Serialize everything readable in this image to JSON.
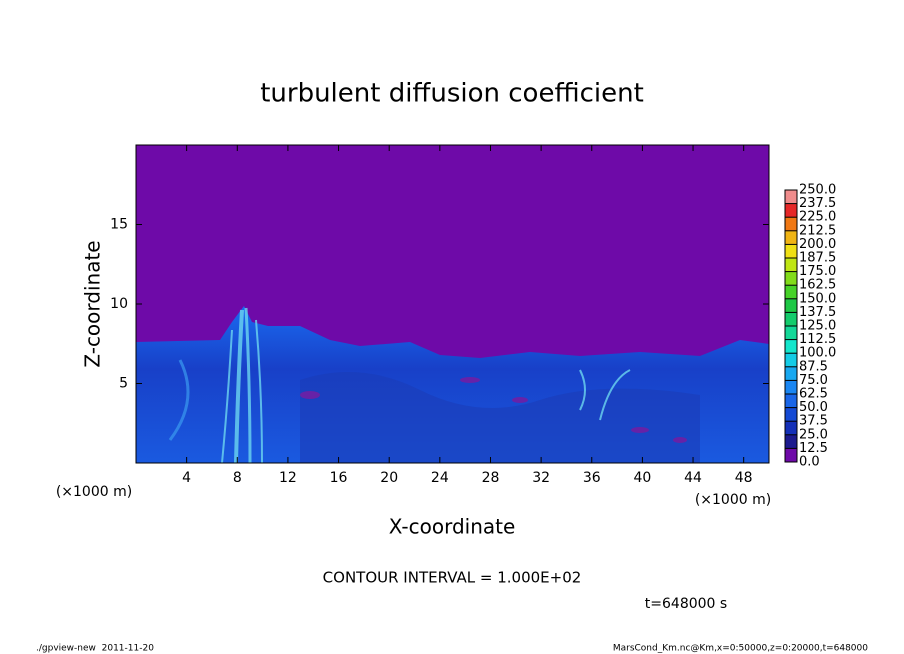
{
  "chart_data": {
    "type": "heatmap",
    "title": "turbulent diffusion coefficient",
    "x_label": "X-coordinate",
    "y_label": "Z-coordinate",
    "x_unit": "(×1000 m)",
    "x_unit_right": "(×1000 m)",
    "xlim": [
      0,
      50
    ],
    "ylim": [
      0,
      20
    ],
    "xticks": [
      4,
      8,
      12,
      16,
      20,
      24,
      28,
      32,
      36,
      40,
      44,
      48
    ],
    "yticks": [
      5,
      10,
      15
    ],
    "colorbar": {
      "ticks": [
        {
          "value": 0,
          "label": "0.0"
        },
        {
          "value": 12.5,
          "label": "12.5"
        },
        {
          "value": 25,
          "label": "25.0"
        },
        {
          "value": 37.5,
          "label": "37.5"
        },
        {
          "value": 50,
          "label": "50.0"
        },
        {
          "value": 62.5,
          "label": "62.5"
        },
        {
          "value": 75,
          "label": "75.0"
        },
        {
          "value": 87.5,
          "label": "87.5"
        },
        {
          "value": 100,
          "label": "100.0"
        },
        {
          "value": 112.5,
          "label": "112.5"
        },
        {
          "value": 125,
          "label": "125.0"
        },
        {
          "value": 137.5,
          "label": "137.5"
        },
        {
          "value": 150,
          "label": "150.0"
        },
        {
          "value": 162.5,
          "label": "162.5"
        },
        {
          "value": 175,
          "label": "175.0"
        },
        {
          "value": 187.5,
          "label": "187.5"
        },
        {
          "value": 200,
          "label": "200.0"
        },
        {
          "value": 212.5,
          "label": "212.5"
        },
        {
          "value": 225,
          "label": "225.0"
        },
        {
          "value": 237.5,
          "label": "237.5"
        },
        {
          "value": 250,
          "label": "250.0"
        }
      ],
      "colors": [
        "#6e0aa8",
        "#1c1a8e",
        "#1430b8",
        "#144ad4",
        "#1a66e8",
        "#1a86f2",
        "#18a8f0",
        "#14cce6",
        "#14e6cc",
        "#14d898",
        "#14cc6c",
        "#1ec846",
        "#46d228",
        "#82dc1a",
        "#c0e614",
        "#f0e014",
        "#f0b414",
        "#f07814",
        "#e62828",
        "#f08c8c"
      ]
    },
    "contour_interval": "CONTOUR INTERVAL = 1.000E+02",
    "time_label": "t=648000 s",
    "footer_left": "./gpview-new  2011-11-20",
    "footer_right": "MarsCond_Km.nc@Km,x=0:50000,z=0:20000,t=648000"
  }
}
